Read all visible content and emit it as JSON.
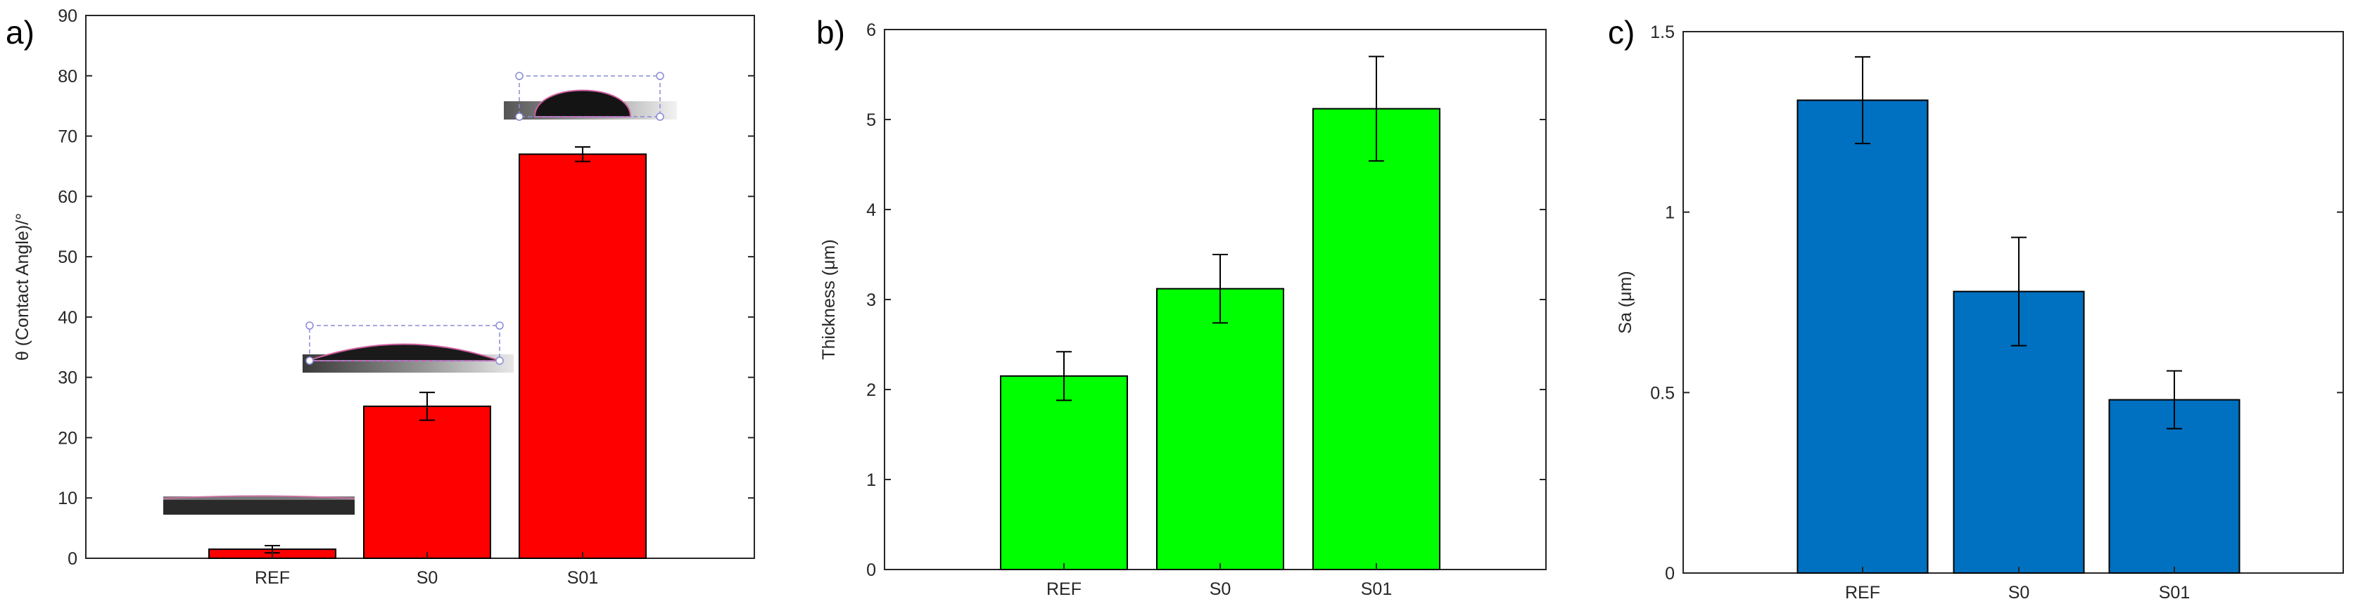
{
  "figure": {
    "panel_labels": [
      "a)",
      "b)",
      "c)"
    ]
  },
  "chart_data": [
    {
      "type": "bar",
      "panel": "a)",
      "title": "",
      "xlabel": "",
      "ylabel": "θ (Contact Angle)/°",
      "categories": [
        "REF",
        "S0",
        "S01"
      ],
      "values": [
        1.5,
        25.2,
        67.0
      ],
      "errors": [
        0.6,
        2.3,
        1.2
      ],
      "ylim": [
        0,
        90
      ],
      "yticks": [
        0,
        10,
        20,
        30,
        40,
        50,
        60,
        70,
        80,
        90
      ],
      "ytick_labels": [
        "0",
        "10",
        "20",
        "30",
        "40",
        "50",
        "60",
        "70",
        "80",
        "90"
      ],
      "bar_color": "#ff0000",
      "grid": false,
      "insets": [
        {
          "category": "REF",
          "content": "droplet-image-flat"
        },
        {
          "category": "S0",
          "content": "droplet-image-low"
        },
        {
          "category": "S01",
          "content": "droplet-image-high"
        }
      ]
    },
    {
      "type": "bar",
      "panel": "b)",
      "title": "",
      "xlabel": "",
      "ylabel": "Thickness (μm)",
      "categories": [
        "REF",
        "S0",
        "S01"
      ],
      "values": [
        2.15,
        3.12,
        5.12
      ],
      "errors": [
        0.27,
        0.38,
        0.58
      ],
      "ylim": [
        0,
        6
      ],
      "yticks": [
        0,
        1,
        2,
        3,
        4,
        5,
        6
      ],
      "ytick_labels": [
        "0",
        "1",
        "2",
        "3",
        "4",
        "5",
        "6"
      ],
      "bar_color": "#00ff00",
      "grid": false
    },
    {
      "type": "bar",
      "panel": "c)",
      "title": "",
      "xlabel": "",
      "ylabel": "Sa (μm)",
      "categories": [
        "REF",
        "S0",
        "S01"
      ],
      "values": [
        1.31,
        0.78,
        0.48
      ],
      "errors": [
        0.12,
        0.15,
        0.08
      ],
      "ylim": [
        0,
        1.5
      ],
      "yticks": [
        0,
        0.5,
        1,
        1.5
      ],
      "ytick_labels": [
        "0",
        "0.5",
        "1",
        "1.5"
      ],
      "bar_color": "#0070c0",
      "grid": false
    }
  ]
}
